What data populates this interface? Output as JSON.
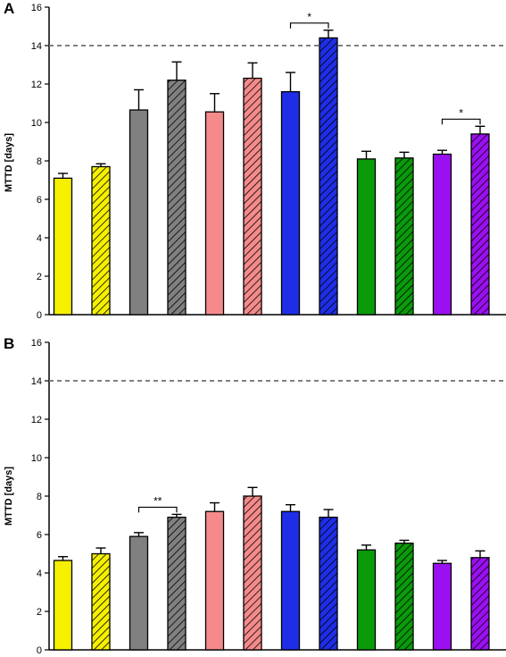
{
  "colors": {
    "yellow": "#f5f000",
    "gray": "#808080",
    "salmon": "#f58a8a",
    "blue": "#1f2ee6",
    "green": "#0a9a0a",
    "purple": "#9b10f0",
    "reference_line": "#808080"
  },
  "chart_data": [
    {
      "panel": "A",
      "type": "bar",
      "ylabel": "MTTD [days]",
      "ylim": [
        0,
        16
      ],
      "yticks": [
        0,
        2,
        4,
        6,
        8,
        10,
        12,
        14,
        16
      ],
      "reference_line": 14,
      "bars": [
        {
          "color": "yellow",
          "hatched": false,
          "value": 7.1,
          "error": 0.25
        },
        {
          "color": "yellow",
          "hatched": true,
          "value": 7.7,
          "error": 0.15
        },
        {
          "color": "gray",
          "hatched": false,
          "value": 10.65,
          "error": 1.05
        },
        {
          "color": "gray",
          "hatched": true,
          "value": 12.2,
          "error": 0.95
        },
        {
          "color": "salmon",
          "hatched": false,
          "value": 10.55,
          "error": 0.95
        },
        {
          "color": "salmon",
          "hatched": true,
          "value": 12.3,
          "error": 0.8
        },
        {
          "color": "blue",
          "hatched": false,
          "value": 11.6,
          "error": 1.0
        },
        {
          "color": "blue",
          "hatched": true,
          "value": 14.4,
          "error": 0.4
        },
        {
          "color": "green",
          "hatched": false,
          "value": 8.1,
          "error": 0.4
        },
        {
          "color": "green",
          "hatched": true,
          "value": 8.15,
          "error": 0.3
        },
        {
          "color": "purple",
          "hatched": false,
          "value": 8.35,
          "error": 0.2
        },
        {
          "color": "purple",
          "hatched": true,
          "value": 9.4,
          "error": 0.4
        }
      ],
      "significance": [
        {
          "from": 6,
          "to": 7,
          "label": "*"
        },
        {
          "from": 10,
          "to": 11,
          "label": "*"
        }
      ]
    },
    {
      "panel": "B",
      "type": "bar",
      "ylabel": "MTTD [days]",
      "ylim": [
        0,
        16
      ],
      "yticks": [
        0,
        2,
        4,
        6,
        8,
        10,
        12,
        14,
        16
      ],
      "reference_line": 14,
      "bars": [
        {
          "color": "yellow",
          "hatched": false,
          "value": 4.65,
          "error": 0.2
        },
        {
          "color": "yellow",
          "hatched": true,
          "value": 5.0,
          "error": 0.3
        },
        {
          "color": "gray",
          "hatched": false,
          "value": 5.9,
          "error": 0.2
        },
        {
          "color": "gray",
          "hatched": true,
          "value": 6.9,
          "error": 0.15
        },
        {
          "color": "salmon",
          "hatched": false,
          "value": 7.2,
          "error": 0.45
        },
        {
          "color": "salmon",
          "hatched": true,
          "value": 8.0,
          "error": 0.45
        },
        {
          "color": "blue",
          "hatched": false,
          "value": 7.2,
          "error": 0.35
        },
        {
          "color": "blue",
          "hatched": true,
          "value": 6.9,
          "error": 0.4
        },
        {
          "color": "green",
          "hatched": false,
          "value": 5.2,
          "error": 0.25
        },
        {
          "color": "green",
          "hatched": true,
          "value": 5.55,
          "error": 0.15
        },
        {
          "color": "purple",
          "hatched": false,
          "value": 4.5,
          "error": 0.15
        },
        {
          "color": "purple",
          "hatched": true,
          "value": 4.8,
          "error": 0.35
        }
      ],
      "significance": [
        {
          "from": 2,
          "to": 3,
          "label": "**"
        }
      ]
    }
  ]
}
